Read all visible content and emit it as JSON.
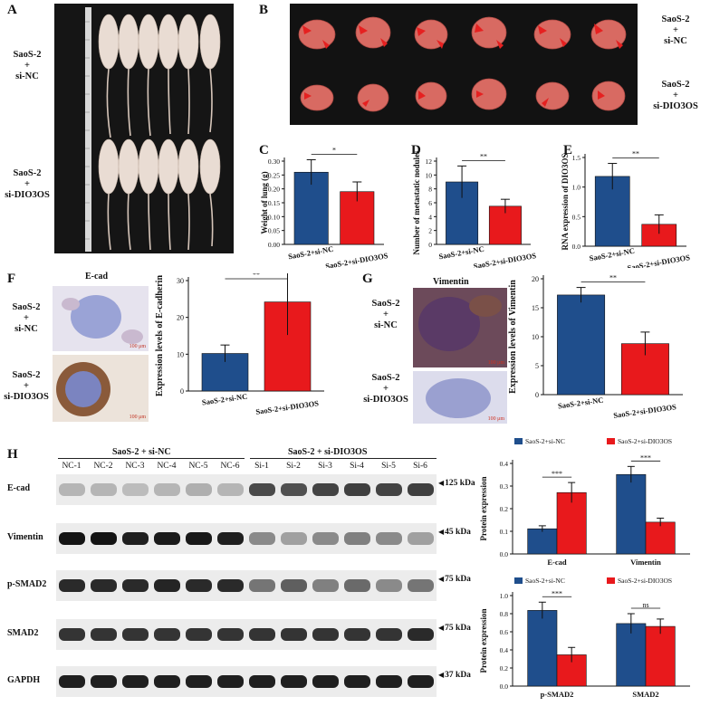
{
  "panels": {
    "A": {
      "letter": "A",
      "group1": "SaoS-2\n+\nsi-NC",
      "group2": "SaoS-2\n+\nsi-DIO3OS"
    },
    "B": {
      "letter": "B",
      "group1": "SaoS-2\n+\nsi-NC",
      "group2": "SaoS-2\n+\nsi-DIO3OS"
    },
    "C": {
      "letter": "C"
    },
    "D": {
      "letter": "D"
    },
    "E": {
      "letter": "E"
    },
    "F": {
      "letter": "F",
      "stain": "E-cad",
      "group1": "SaoS-2\n+\nsi-NC",
      "group2": "SaoS-2\n+\nsi-DIO3OS",
      "scale": "100 μm"
    },
    "G": {
      "letter": "G",
      "stain": "Vimentin",
      "group1": "SaoS-2\n+\nsi-NC",
      "group2": "SaoS-2\n+\nsi-DIO3OS",
      "scale": "100 μm"
    },
    "H": {
      "letter": "H",
      "group1_header": "SaoS-2 + si-NC",
      "group2_header": "SaoS-2 + si-DIO3OS",
      "lanes": [
        "NC-1",
        "NC-2",
        "NC-3",
        "NC-4",
        "NC-5",
        "NC-6",
        "Si-1",
        "Si-2",
        "Si-3",
        "Si-4",
        "Si-5",
        "Si-6"
      ],
      "blots": [
        {
          "protein": "E-cad",
          "kda": "125 kDa",
          "intensities": [
            0.25,
            0.25,
            0.22,
            0.25,
            0.28,
            0.25,
            0.75,
            0.72,
            0.78,
            0.8,
            0.78,
            0.8
          ]
        },
        {
          "protein": "Vimentin",
          "kda": "45 kDa",
          "intensities": [
            1.0,
            1.0,
            0.95,
            0.97,
            0.98,
            0.95,
            0.45,
            0.35,
            0.45,
            0.5,
            0.45,
            0.35
          ]
        },
        {
          "protein": "p-SMAD2",
          "kda": "75 kDa",
          "intensities": [
            0.9,
            0.9,
            0.9,
            0.92,
            0.9,
            0.9,
            0.55,
            0.65,
            0.5,
            0.6,
            0.45,
            0.55
          ]
        },
        {
          "protein": "SMAD2",
          "kda": "75 kDa",
          "intensities": [
            0.85,
            0.85,
            0.85,
            0.85,
            0.85,
            0.85,
            0.85,
            0.85,
            0.85,
            0.85,
            0.85,
            0.9
          ]
        },
        {
          "protein": "GAPDH",
          "kda": "37 kDa",
          "intensities": [
            0.95,
            0.95,
            0.95,
            0.95,
            0.95,
            0.95,
            0.95,
            0.95,
            0.95,
            0.95,
            0.95,
            0.95
          ]
        }
      ]
    }
  },
  "colors": {
    "si_nc": "#1f4e8c",
    "si_dio3os": "#e8191c"
  },
  "chart_data": [
    {
      "id": "C",
      "type": "bar",
      "categories": [
        "SaoS-2+si-NC",
        "SaoS-2+si-DIO3OS"
      ],
      "values": [
        0.26,
        0.19
      ],
      "errors": [
        0.045,
        0.035
      ],
      "ylabel": "Weight of lung (g)",
      "ylim": [
        0,
        0.3
      ],
      "yticks": [
        "0.00",
        "0.05",
        "0.10",
        "0.15",
        "0.20",
        "0.25",
        "0.30"
      ],
      "significance": "*"
    },
    {
      "id": "D",
      "type": "bar",
      "categories": [
        "SaoS-2+si-NC",
        "SaoS-2+si-DIO3OS"
      ],
      "values": [
        9.0,
        5.5
      ],
      "errors": [
        2.3,
        1.0
      ],
      "ylabel": "Number of metastatic nodules",
      "ylim": [
        0,
        12
      ],
      "yticks": [
        "0",
        "2",
        "4",
        "6",
        "8",
        "10",
        "12"
      ],
      "significance": "**"
    },
    {
      "id": "E",
      "type": "bar",
      "categories": [
        "SaoS-2+si-NC",
        "SaoS-2+si-DIO3OS"
      ],
      "values": [
        1.18,
        0.37
      ],
      "errors": [
        0.22,
        0.16
      ],
      "ylabel": "RNA expression of DIO3OS",
      "ylim": [
        0,
        1.5
      ],
      "yticks": [
        "0.0",
        "0.5",
        "1.0",
        "1.5"
      ],
      "significance": "**"
    },
    {
      "id": "F",
      "type": "bar",
      "categories": [
        "SaoS-2+si-NC",
        "SaoS-2+si-DIO3OS"
      ],
      "values": [
        10.2,
        24.2
      ],
      "errors": [
        2.3,
        9.0
      ],
      "ylabel": "Expression levels of E-cadherin",
      "ylim": [
        0,
        30
      ],
      "yticks": [
        "0",
        "10",
        "20",
        "30"
      ],
      "significance": "**"
    },
    {
      "id": "G",
      "type": "bar",
      "categories": [
        "SaoS-2+si-NC",
        "SaoS-2+si-DIO3OS"
      ],
      "values": [
        17.2,
        8.8
      ],
      "errors": [
        1.3,
        2.0
      ],
      "ylabel": "Expression levels of Vimentin",
      "ylim": [
        0,
        20
      ],
      "yticks": [
        "0",
        "5",
        "10",
        "15",
        "20"
      ],
      "significance": "**"
    },
    {
      "id": "H1",
      "type": "bar",
      "categories": [
        "E-cad",
        "Vimentin"
      ],
      "series": [
        {
          "name": "SaoS-2+si-NC",
          "values": [
            0.125,
            0.395
          ],
          "errors": [
            0.015,
            0.04
          ]
        },
        {
          "name": "SaoS-2+si-DIO3OS",
          "values": [
            0.305,
            0.158
          ],
          "errors": [
            0.05,
            0.02
          ]
        }
      ],
      "ylabel": "Protein expression",
      "ylim": [
        0,
        0.45
      ],
      "yticks": [
        "0.0",
        "0.1",
        "0.2",
        "0.3",
        "0.4"
      ],
      "significance": [
        "***",
        "***"
      ]
    },
    {
      "id": "H2",
      "type": "bar",
      "categories": [
        "p-SMAD2",
        "SMAD2"
      ],
      "series": [
        {
          "name": "SaoS-2+si-NC",
          "values": [
            0.92,
            0.76
          ],
          "errors": [
            0.1,
            0.12
          ]
        },
        {
          "name": "SaoS-2+si-DIO3OS",
          "values": [
            0.38,
            0.725
          ],
          "errors": [
            0.09,
            0.09
          ]
        }
      ],
      "ylabel": "Protein expression",
      "ylim": [
        0,
        1.1
      ],
      "yticks": [
        "0.0",
        "0.2",
        "0.4",
        "0.6",
        "0.8",
        "1.0"
      ],
      "significance": [
        "***",
        "ns"
      ]
    }
  ]
}
